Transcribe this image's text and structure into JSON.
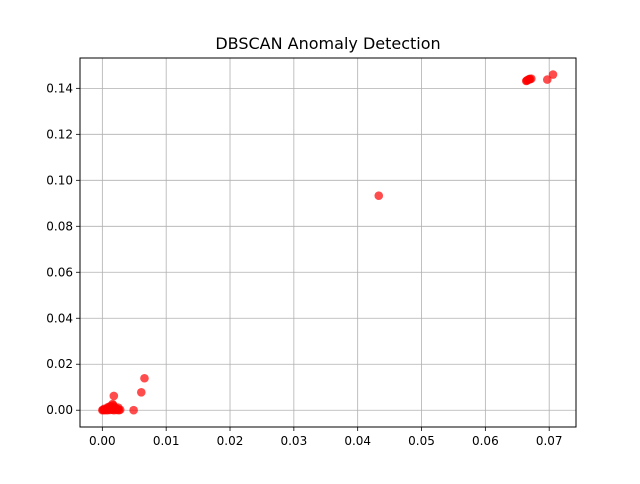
{
  "chart_data": {
    "type": "scatter",
    "title": "DBSCAN Anomaly Detection",
    "xlabel": "",
    "ylabel": "",
    "xlim": [
      -0.0035,
      0.0742
    ],
    "ylim": [
      -0.0073,
      0.1532
    ],
    "xticks": [
      0.0,
      0.01,
      0.02,
      0.03,
      0.04,
      0.05,
      0.06,
      0.07
    ],
    "xtick_labels": [
      "0.00",
      "0.01",
      "0.02",
      "0.03",
      "0.04",
      "0.05",
      "0.06",
      "0.07"
    ],
    "yticks": [
      0.0,
      0.02,
      0.04,
      0.06,
      0.08,
      0.1,
      0.12,
      0.14
    ],
    "ytick_labels": [
      "0.00",
      "0.02",
      "0.04",
      "0.06",
      "0.08",
      "0.10",
      "0.12",
      "0.14"
    ],
    "grid": true,
    "marker_color": "#ff0000",
    "marker_alpha": 0.7,
    "series": [
      {
        "points": [
          [
            0.0,
            0.0
          ],
          [
            0.0002,
            0.0001
          ],
          [
            0.0004,
            0.0
          ],
          [
            0.0006,
            0.0002
          ],
          [
            0.0008,
            0.0
          ],
          [
            0.001,
            0.0003
          ],
          [
            0.0012,
            0.0001
          ],
          [
            0.0014,
            0.0004
          ],
          [
            0.0016,
            0.0002
          ],
          [
            0.0018,
            0.0
          ],
          [
            0.002,
            0.0005
          ],
          [
            0.0022,
            0.0001
          ],
          [
            0.0024,
            0.0003
          ],
          [
            0.0026,
            0.0
          ],
          [
            0.0028,
            0.0002
          ],
          [
            0.0003,
            0.0006
          ],
          [
            0.0007,
            0.0008
          ],
          [
            0.0011,
            0.0012
          ],
          [
            0.0013,
            0.0018
          ],
          [
            0.0015,
            0.001
          ],
          [
            0.0017,
            0.0022
          ],
          [
            0.0019,
            0.0015
          ],
          [
            0.0021,
            0.0009
          ],
          [
            0.0023,
            0.0006
          ],
          [
            0.0009,
            0.0014
          ],
          [
            0.0005,
            0.0004
          ],
          [
            0.0001,
            0.0002
          ],
          [
            0.0025,
            0.0011
          ],
          [
            0.0016,
            0.0027
          ],
          [
            0.0013,
            0.0007
          ],
          [
            0.0018,
            0.0062
          ],
          [
            0.0049,
            0.0
          ],
          [
            0.0061,
            0.0078
          ],
          [
            0.0066,
            0.0139
          ],
          [
            0.0433,
            0.0933
          ],
          [
            0.0664,
            0.1432
          ],
          [
            0.0666,
            0.1436
          ],
          [
            0.0668,
            0.1438
          ],
          [
            0.067,
            0.144
          ],
          [
            0.0672,
            0.1442
          ],
          [
            0.0665,
            0.1434
          ],
          [
            0.0669,
            0.1441
          ],
          [
            0.0697,
            0.1438
          ],
          [
            0.0706,
            0.146
          ]
        ]
      }
    ]
  }
}
